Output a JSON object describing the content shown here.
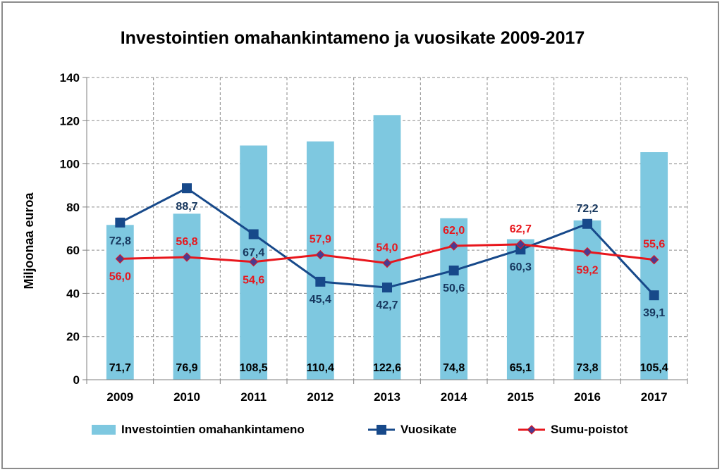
{
  "chart_data": {
    "type": "bar",
    "title": "Investointien omahankintameno ja vuosikate 2009-2017",
    "ylabel": "Miljoonaa euroa",
    "xlabel": "",
    "ylim": [
      0,
      140
    ],
    "yticks": [
      0,
      20,
      40,
      60,
      80,
      100,
      120,
      140
    ],
    "grid": true,
    "legend_position": "bottom",
    "categories": [
      "2009",
      "2010",
      "2011",
      "2012",
      "2013",
      "2014",
      "2015",
      "2016",
      "2017"
    ],
    "series": [
      {
        "name": "Investointien omahankintameno",
        "type": "bar",
        "color": "#7ec8e0",
        "label_color": "#000000",
        "values": [
          71.7,
          76.9,
          108.5,
          110.4,
          122.6,
          74.8,
          65.1,
          73.8,
          105.4
        ],
        "labels": [
          "71,7",
          "76,9",
          "108,5",
          "110,4",
          "122,6",
          "74,8",
          "65,1",
          "73,8",
          "105,4"
        ]
      },
      {
        "name": "Vuosikate",
        "type": "line",
        "marker": "square",
        "color": "#17498a",
        "label_color": "#17375e",
        "values": [
          72.8,
          88.7,
          67.4,
          45.4,
          42.7,
          50.6,
          60.3,
          72.2,
          39.1
        ],
        "labels": [
          "72,8",
          "88,7",
          "67,4",
          "45,4",
          "42,7",
          "50,6",
          "60,3",
          "72,2",
          "39,1"
        ]
      },
      {
        "name": "Sumu-poistot",
        "type": "line",
        "marker": "diamond",
        "color": "#e8161c",
        "marker_fill": "#4b3a8f",
        "label_color": "#e8161c",
        "values": [
          56.0,
          56.8,
          54.6,
          57.9,
          54.0,
          62.0,
          62.7,
          59.2,
          55.6
        ],
        "labels": [
          "56,0",
          "56,8",
          "54,6",
          "57,9",
          "54,0",
          "62,0",
          "62,7",
          "59,2",
          "55,6"
        ]
      }
    ]
  }
}
